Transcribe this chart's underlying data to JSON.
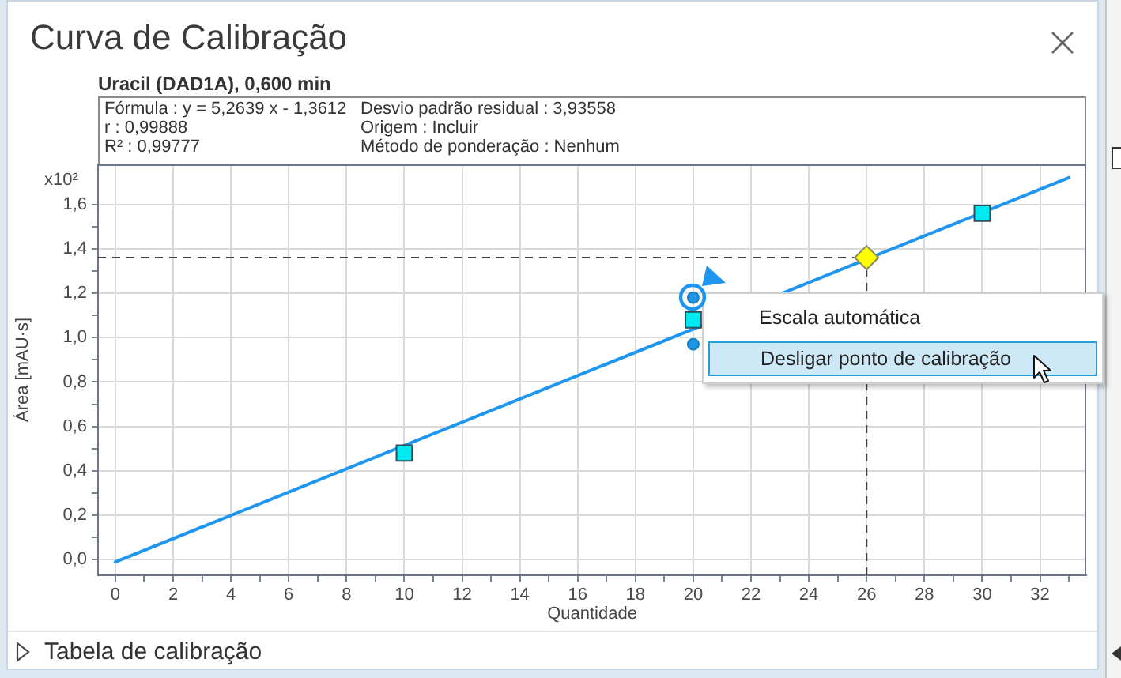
{
  "chart_data": {
    "type": "scatter",
    "title": "Curva de Calibração",
    "subtitle": "Uracil (DAD1A), 0,600 min",
    "xlabel": "Quantidade",
    "ylabel": "Área [mAU·s]",
    "annotations": [
      "Fórmula : y = 5,2639 x - 1,3612",
      "r : 0,99888",
      "R² : 0,99777",
      "Desvio padrão residual : 3,93558",
      "Origem : Incluir",
      "Método de ponderação : Nenhum",
      "x10²",
      "Escala automática",
      "Desligar ponto de calibração",
      "Tabela de calibração"
    ],
    "series": [
      {
        "type": "line",
        "x": [
          0,
          33
        ],
        "values": [
          -0.01,
          1.72
        ],
        "color": "#1e96f0",
        "marker": "none"
      },
      {
        "x": [
          10,
          20,
          30
        ],
        "values": [
          0.48,
          1.08,
          1.56
        ],
        "color": "#00e8f0",
        "marker": "square"
      },
      {
        "x": [
          20,
          20
        ],
        "values": [
          1.18,
          0.97
        ],
        "color": "#1e96e6",
        "marker": "circle"
      },
      {
        "x": [
          26
        ],
        "values": [
          1.36
        ],
        "color": "#ffff00",
        "marker": "diamond"
      }
    ],
    "xlim": [
      -0.6,
      33.6
    ],
    "ylim": [
      -0.07,
      1.78
    ],
    "xticks": [
      0,
      {
        "value": 1,
        "label": null
      },
      2,
      {
        "value": 3,
        "label": null
      },
      4,
      {
        "value": 5,
        "label": null
      },
      6,
      {
        "value": 7,
        "label": null
      },
      8,
      {
        "value": 9,
        "label": null
      },
      10,
      {
        "value": 11,
        "label": null
      },
      12,
      {
        "value": 13,
        "label": null
      },
      14,
      {
        "value": 15,
        "label": null
      },
      16,
      {
        "value": 17,
        "label": null
      },
      18,
      {
        "value": 19,
        "label": null
      },
      20,
      {
        "value": 21,
        "label": null
      },
      22,
      {
        "value": 23,
        "label": null
      },
      24,
      {
        "value": 25,
        "label": null
      },
      26,
      {
        "value": 27,
        "label": null
      },
      28,
      {
        "value": 29,
        "label": null
      },
      30,
      {
        "value": 31,
        "label": null
      },
      32,
      {
        "value": 33,
        "label": null
      }
    ],
    "yticks": [
      {
        "value": 0,
        "label": "0,0"
      },
      {
        "value": 0.1,
        "label": null
      },
      {
        "value": 0.2,
        "label": "0,2"
      },
      {
        "value": 0.3,
        "label": null
      },
      {
        "value": 0.4,
        "label": "0,4"
      },
      {
        "value": 0.5,
        "label": null
      },
      {
        "value": 0.6,
        "label": "0,6"
      },
      {
        "value": 0.7,
        "label": null
      },
      {
        "value": 0.8,
        "label": "0,8"
      },
      {
        "value": 0.9,
        "label": null
      },
      {
        "value": 1.0,
        "label": "1,0"
      },
      {
        "value": 1.1,
        "label": null
      },
      {
        "value": 1.2,
        "label": "1,2"
      },
      {
        "value": 1.3,
        "label": null
      },
      {
        "value": 1.4,
        "label": "1,4"
      },
      {
        "value": 1.5,
        "label": null
      },
      {
        "value": 1.6,
        "label": "1,6"
      }
    ],
    "ref_lines": [
      {
        "axis": "y",
        "value": 1.36,
        "color": "#404040",
        "line_style": "dashed"
      },
      {
        "axis": "x",
        "value": 26,
        "color": "#404040",
        "line_style": "dashed"
      }
    ],
    "grid": true
  }
}
